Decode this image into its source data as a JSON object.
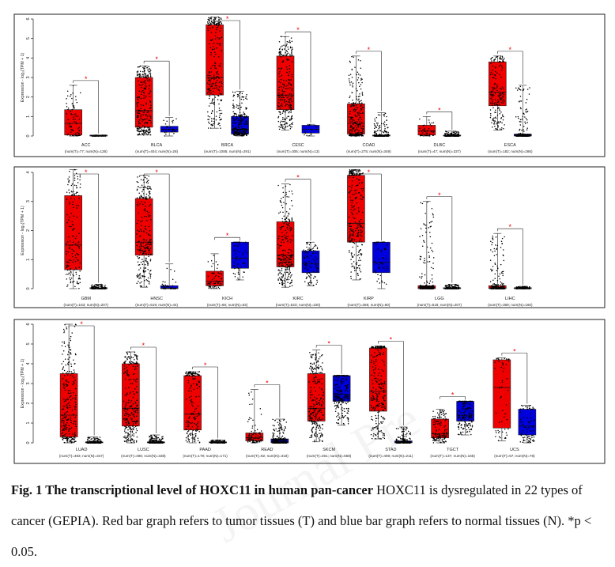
{
  "colors": {
    "tumor": "#ee0000",
    "normal": "#0000dd",
    "star": "#ee0000",
    "points": "#000000"
  },
  "ylabel": "Expression - log₂(TPM + 1)",
  "chart_data": [
    {
      "type": "box",
      "panel": "top",
      "ylabel": "Expression - log₂(TPM + 1)",
      "ylim": [
        0,
        6
      ],
      "yticks": [
        0,
        1,
        2,
        3,
        4,
        5,
        6
      ],
      "significance": "* p < 0.05",
      "categories": [
        {
          "label": "ACC",
          "n": "(num(T)=77; num(N)=128)",
          "T": [
            0.0,
            0.05,
            0.65,
            1.35,
            2.6
          ],
          "N": [
            0.0,
            0.0,
            0.01,
            0.02,
            0.05
          ],
          "sig": true
        },
        {
          "label": "BLCA",
          "n": "(num(T)=404; num(N)=28)",
          "T": [
            0.05,
            0.45,
            1.3,
            3.0,
            3.6
          ],
          "N": [
            0.0,
            0.2,
            0.35,
            0.5,
            0.95
          ],
          "sig": true
        },
        {
          "label": "BRCA",
          "n": "(num(T)=1085; num(N)=291)",
          "T": [
            0.4,
            2.1,
            3.0,
            5.7,
            6.1
          ],
          "N": [
            0.0,
            0.1,
            0.35,
            1.0,
            2.3
          ],
          "sig": true
        },
        {
          "label": "CESC",
          "n": "(num(T)=306; num(N)=13)",
          "T": [
            0.3,
            1.35,
            2.1,
            4.1,
            5.1
          ],
          "N": [
            0.0,
            0.15,
            0.35,
            0.55,
            0.6
          ],
          "sig": true
        },
        {
          "label": "COAD",
          "n": "(num(T)=275; num(N)=349)",
          "T": [
            0.0,
            0.1,
            0.65,
            1.65,
            4.1
          ],
          "N": [
            0.0,
            0.0,
            0.02,
            0.05,
            1.2
          ],
          "sig": true
        },
        {
          "label": "DLBC",
          "n": "(num(T)=47; num(N)=337)",
          "T": [
            0.0,
            0.05,
            0.25,
            0.55,
            1.0
          ],
          "N": [
            0.0,
            0.0,
            0.01,
            0.02,
            0.25
          ],
          "sig": true
        },
        {
          "label": "ESCA",
          "n": "(num(T)=182; num(N)=286)",
          "T": [
            0.3,
            1.55,
            2.25,
            3.8,
            4.1
          ],
          "N": [
            0.0,
            0.0,
            0.02,
            0.1,
            2.6
          ],
          "sig": true
        }
      ]
    },
    {
      "type": "box",
      "panel": "middle",
      "ylabel": "Expression - log₂(TPM + 1)",
      "ylim": [
        0,
        4
      ],
      "yticks": [
        0,
        1,
        2,
        3,
        4
      ],
      "significance": "* p < 0.05",
      "categories": [
        {
          "label": "GBM",
          "n": "(num(T)=163; num(N)=207)",
          "T": [
            0.0,
            0.65,
            1.5,
            3.2,
            4.1
          ],
          "N": [
            0.0,
            0.0,
            0.01,
            0.03,
            0.15
          ],
          "sig": true
        },
        {
          "label": "HNSC",
          "n": "(num(T)=519; num(N)=44)",
          "T": [
            0.05,
            1.15,
            1.6,
            3.1,
            3.9
          ],
          "N": [
            0.0,
            0.0,
            0.02,
            0.1,
            0.85
          ],
          "sig": true
        },
        {
          "label": "KICH",
          "n": "(num(T)=66; num(N)=53)",
          "T": [
            0.0,
            0.1,
            0.25,
            0.6,
            1.2
          ],
          "N": [
            0.3,
            0.7,
            1.05,
            1.6,
            1.6
          ],
          "sig": true
        },
        {
          "label": "KIRC",
          "n": "(num(T)=523; num(N)=100)",
          "T": [
            0.05,
            0.75,
            1.15,
            2.3,
            3.6
          ],
          "N": [
            0.1,
            0.55,
            0.85,
            1.3,
            1.6
          ],
          "sig": true
        },
        {
          "label": "KIRP",
          "n": "(num(T)=286; num(N)=60)",
          "T": [
            0.3,
            1.6,
            2.25,
            3.9,
            4.1
          ],
          "N": [
            0.0,
            0.55,
            0.9,
            1.6,
            1.6
          ],
          "sig": true
        },
        {
          "label": "LGG",
          "n": "(num(T)=518; num(N)=207)",
          "T": [
            0.0,
            0.0,
            0.03,
            0.1,
            3.0
          ],
          "N": [
            0.0,
            0.0,
            0.01,
            0.03,
            0.15
          ],
          "sig": true
        },
        {
          "label": "LIHC",
          "n": "(num(T)=369; num(N)=160)",
          "T": [
            0.0,
            0.0,
            0.02,
            0.1,
            1.9
          ],
          "N": [
            0.0,
            0.0,
            0.01,
            0.03,
            0.08
          ],
          "sig": true
        }
      ]
    },
    {
      "type": "box",
      "panel": "bottom",
      "ylabel": "Expression - log₂(TPM + 1)",
      "ylim": [
        0,
        6
      ],
      "yticks": [
        0,
        1,
        2,
        3,
        4,
        5,
        6
      ],
      "significance": "* p < 0.05",
      "categories": [
        {
          "label": "LUAD",
          "n": "(num(T)=483; num(N)=347)",
          "T": [
            0.0,
            0.3,
            1.4,
            3.5,
            6.0
          ],
          "N": [
            0.0,
            0.0,
            0.02,
            0.05,
            0.3
          ],
          "sig": true
        },
        {
          "label": "LUSC",
          "n": "(num(T)=486; num(N)=338)",
          "T": [
            0.0,
            0.85,
            1.75,
            4.0,
            4.6
          ],
          "N": [
            0.0,
            0.0,
            0.02,
            0.05,
            0.4
          ],
          "sig": true
        },
        {
          "label": "PAAD",
          "n": "(num(T)=179; num(N)=171)",
          "T": [
            0.0,
            0.65,
            1.45,
            3.4,
            3.6
          ],
          "N": [
            0.0,
            0.0,
            0.02,
            0.05,
            0.15
          ],
          "sig": true
        },
        {
          "label": "READ",
          "n": "(num(T)=92; num(N)=318)",
          "T": [
            0.0,
            0.1,
            0.25,
            0.5,
            2.7
          ],
          "N": [
            0.0,
            0.0,
            0.05,
            0.2,
            1.2
          ],
          "sig": true
        },
        {
          "label": "SKCM",
          "n": "(num(T)=461; num(N)=558)",
          "T": [
            0.05,
            1.1,
            1.75,
            3.5,
            4.7
          ],
          "N": [
            0.9,
            2.1,
            2.45,
            3.4,
            3.4
          ],
          "sig": true
        },
        {
          "label": "STAD",
          "n": "(num(T)=408; num(N)=211)",
          "T": [
            0.2,
            1.6,
            2.6,
            4.8,
            4.9
          ],
          "N": [
            0.0,
            0.0,
            0.02,
            0.1,
            0.8
          ],
          "sig": true
        },
        {
          "label": "TGCT",
          "n": "(num(T)=137; num(N)=165)",
          "T": [
            0.0,
            0.25,
            0.45,
            1.2,
            1.7
          ],
          "N": [
            0.4,
            1.1,
            1.4,
            2.1,
            2.1
          ],
          "sig": true
        },
        {
          "label": "UCS",
          "n": "(num(T)=57; num(N)=78)",
          "T": [
            0.1,
            0.75,
            2.8,
            4.2,
            4.3
          ],
          "N": [
            0.0,
            0.4,
            0.85,
            1.7,
            1.9
          ],
          "sig": true
        }
      ]
    }
  ],
  "caption": {
    "title": "Fig. 1 The transcriptional level of HOXC11 in human pan-cancer",
    "body": " HOXC11 is dysregulated in 22 types of cancer (GEPIA). Red bar graph refers to tumor tissues (T) and blue bar graph refers to normal tissues (N). *p < 0.05."
  }
}
